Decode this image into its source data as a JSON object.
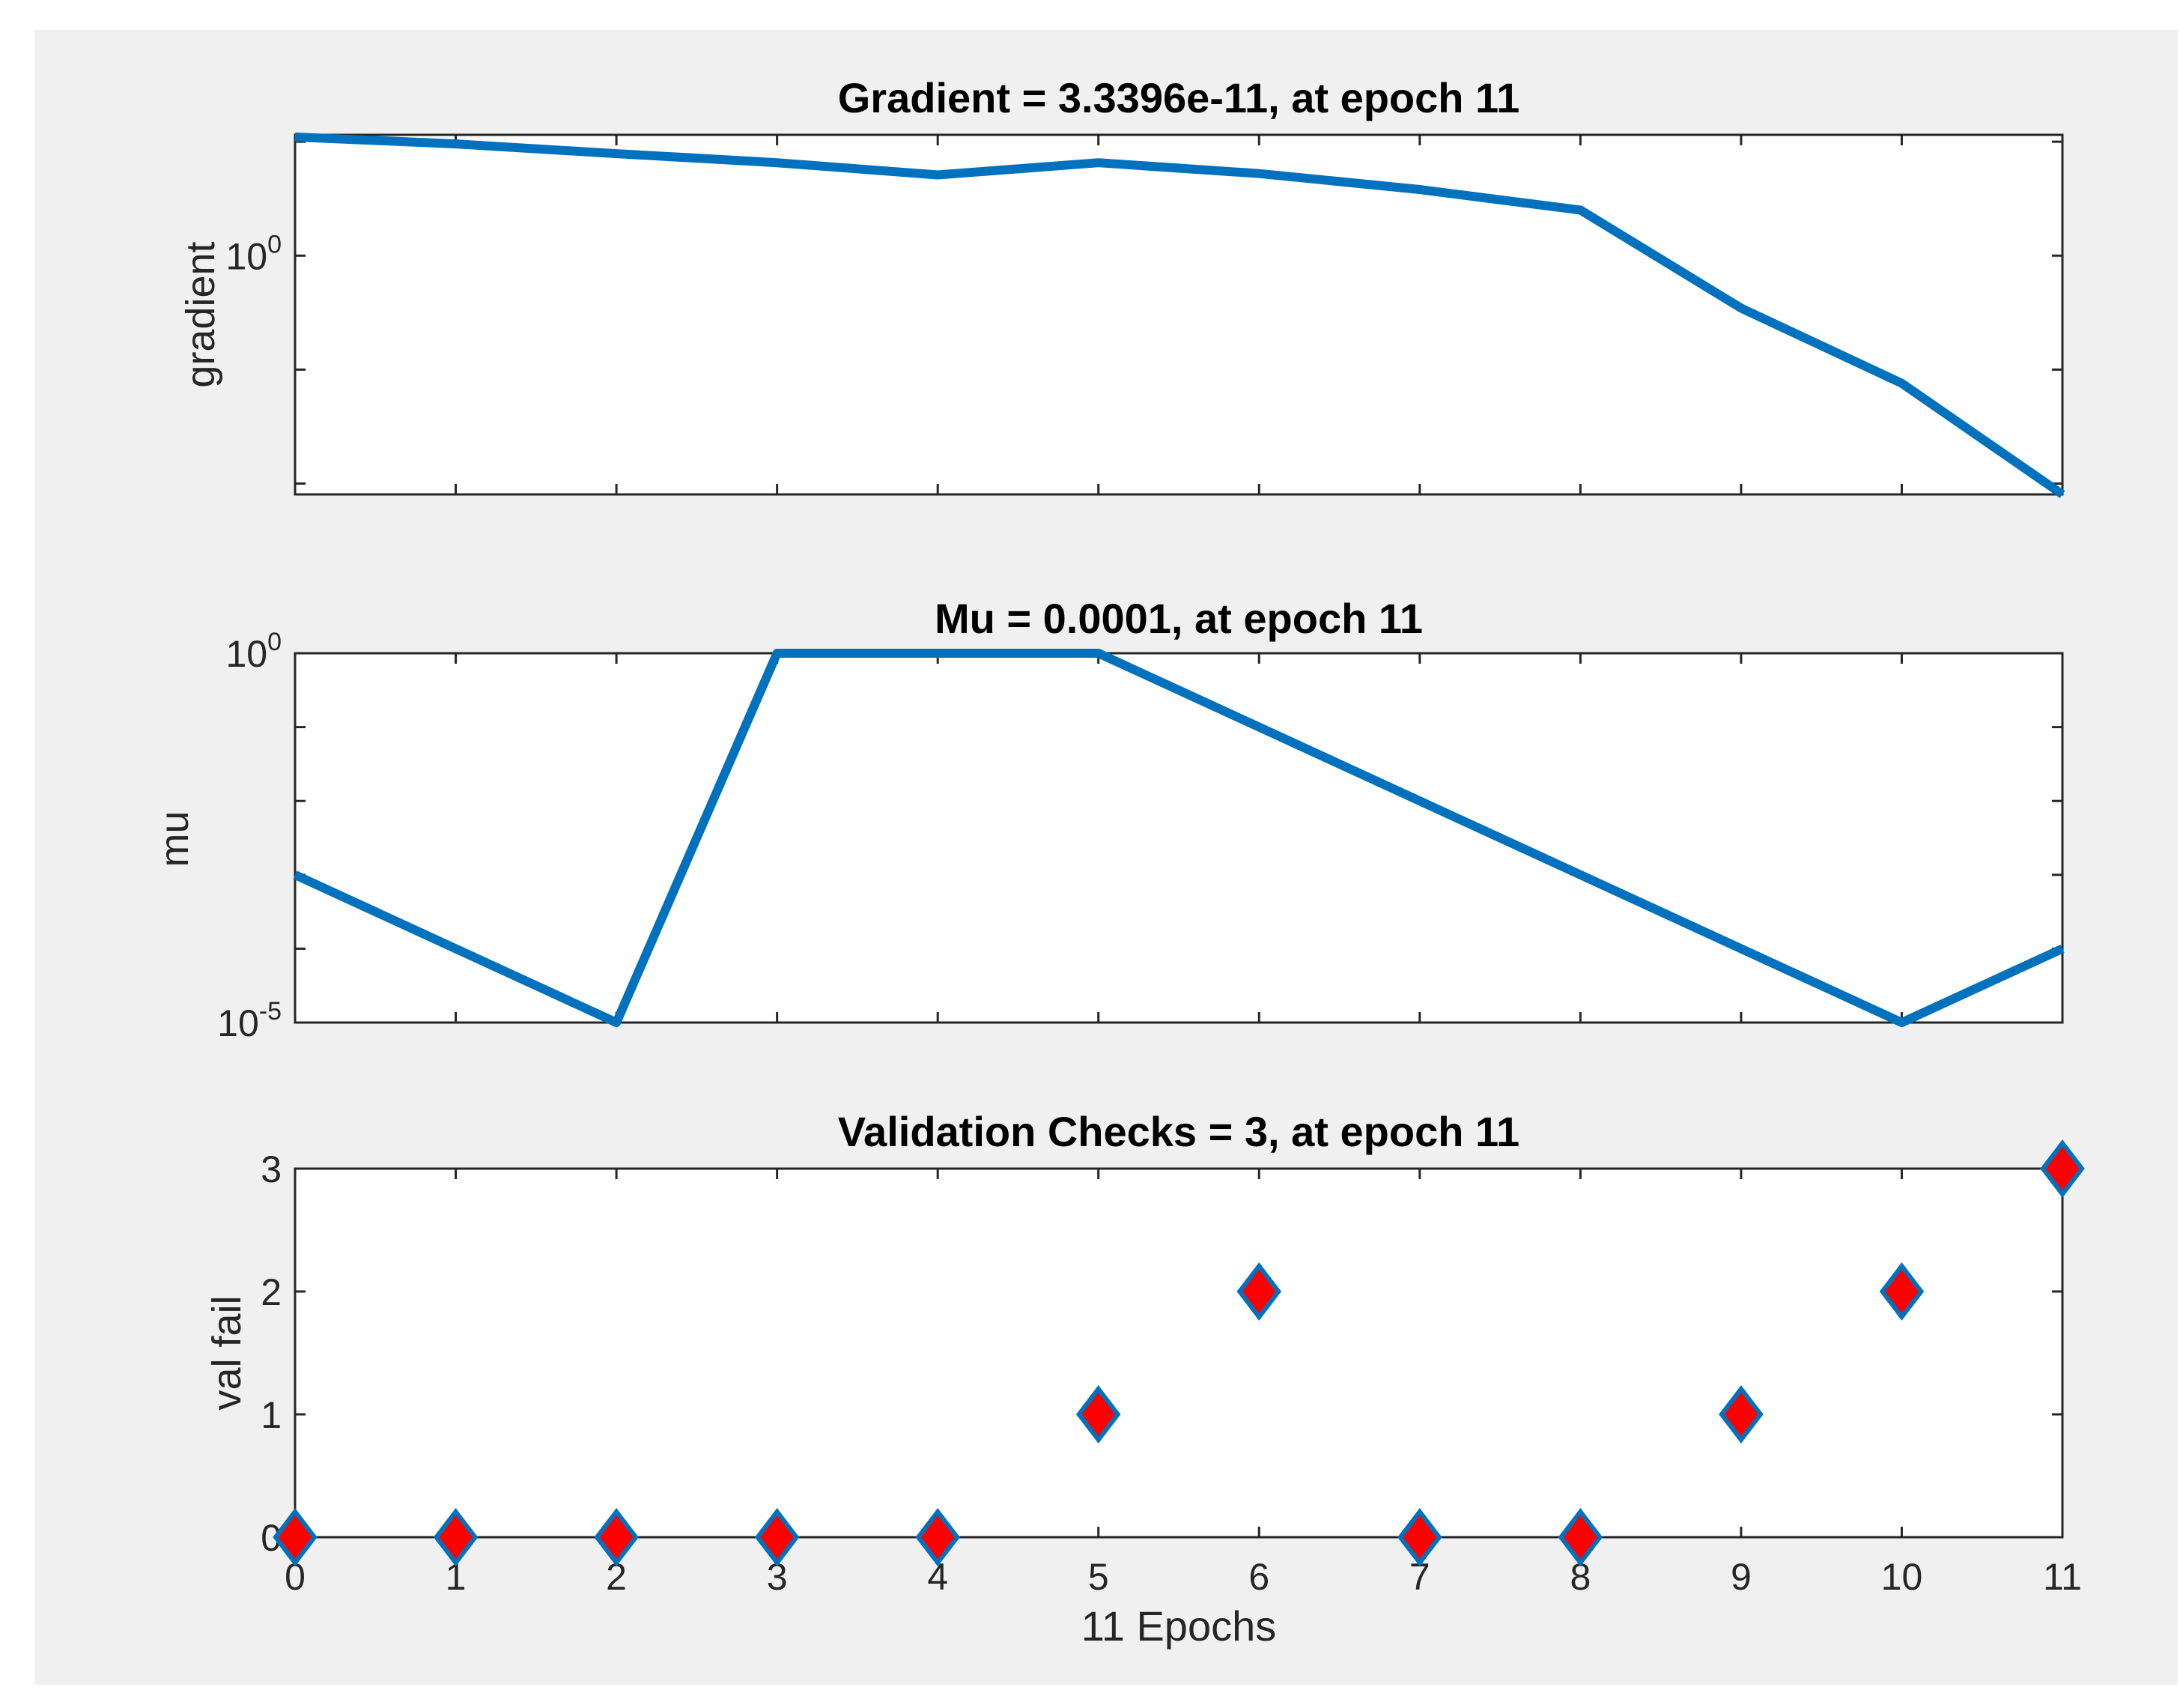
{
  "figure": {
    "background": "#f0f0f0",
    "line_color": "#0072bd",
    "marker_fill": "#ff0000"
  },
  "chart_data": [
    {
      "type": "line",
      "title": "Gradient = 3.3396e-11, at epoch 11",
      "xlabel": "",
      "ylabel": "gradient",
      "yscale": "log",
      "x": [
        0,
        1,
        2,
        3,
        4,
        5,
        6,
        7,
        8,
        9,
        10,
        11
      ],
      "y": [
        160000.0,
        80000.0,
        30000.0,
        12000.0,
        3500.0,
        12000.0,
        4000.0,
        800.0,
        100.0,
        0.005,
        2.5e-06,
        3.3396e-11
      ],
      "ylim": [
        3.3396e-11,
        200000.0
      ],
      "yticks": [
        {
          "value": 1,
          "base": "10",
          "exp": "0"
        }
      ],
      "xlim": [
        0,
        11
      ]
    },
    {
      "type": "line",
      "title": "Mu = 0.0001, at epoch 11",
      "xlabel": "",
      "ylabel": "mu",
      "yscale": "log",
      "x": [
        0,
        1,
        2,
        3,
        4,
        5,
        6,
        7,
        8,
        9,
        10,
        11
      ],
      "y": [
        0.001,
        0.0001,
        1e-05,
        1,
        1,
        1,
        0.1,
        0.01,
        0.001,
        0.0001,
        1e-05,
        0.0001
      ],
      "ylim": [
        1e-05,
        1
      ],
      "yticks": [
        {
          "value": 1,
          "base": "10",
          "exp": "0"
        },
        {
          "value": 1e-05,
          "base": "10",
          "exp": "-5"
        }
      ],
      "xlim": [
        0,
        11
      ]
    },
    {
      "type": "scatter",
      "title": "Validation Checks = 3, at epoch 11",
      "xlabel": "11 Epochs",
      "ylabel": "val fail",
      "x": [
        0,
        1,
        2,
        3,
        4,
        5,
        6,
        7,
        8,
        9,
        10,
        11
      ],
      "y": [
        0,
        0,
        0,
        0,
        0,
        1,
        2,
        0,
        0,
        1,
        2,
        3
      ],
      "ylim": [
        0,
        3
      ],
      "yticks": [
        0,
        1,
        2,
        3
      ],
      "xticks": [
        0,
        1,
        2,
        3,
        4,
        5,
        6,
        7,
        8,
        9,
        10,
        11
      ],
      "xlim": [
        0,
        11
      ]
    }
  ]
}
